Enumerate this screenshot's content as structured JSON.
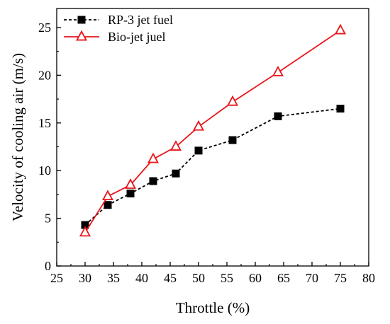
{
  "chart_data": {
    "type": "line",
    "xlabel": "Throttle (%)",
    "ylabel": "Velocity of cooling air (m/s)",
    "xlim": [
      25,
      80
    ],
    "ylim": [
      0,
      27
    ],
    "xticks": [
      25,
      30,
      35,
      40,
      45,
      50,
      55,
      60,
      65,
      70,
      75,
      80
    ],
    "yticks": [
      0,
      5,
      10,
      15,
      20,
      25
    ],
    "grid": false,
    "legend_position": "top-left",
    "series": [
      {
        "name": "RP-3 jet fuel",
        "color": "#000000",
        "line_style": "dashed",
        "marker": "filled-square",
        "x": [
          30,
          34,
          38,
          42,
          46,
          50,
          56,
          64,
          75
        ],
        "y": [
          4.3,
          6.4,
          7.6,
          8.9,
          9.7,
          12.1,
          13.2,
          15.7,
          16.5
        ]
      },
      {
        "name": "Bio-jet juel",
        "color": "#e8161b",
        "line_style": "solid",
        "marker": "open-triangle",
        "x": [
          30,
          34,
          38,
          42,
          46,
          50,
          56,
          64,
          75
        ],
        "y": [
          3.5,
          7.3,
          8.5,
          11.2,
          12.5,
          14.6,
          17.2,
          20.3,
          24.7
        ]
      }
    ]
  }
}
